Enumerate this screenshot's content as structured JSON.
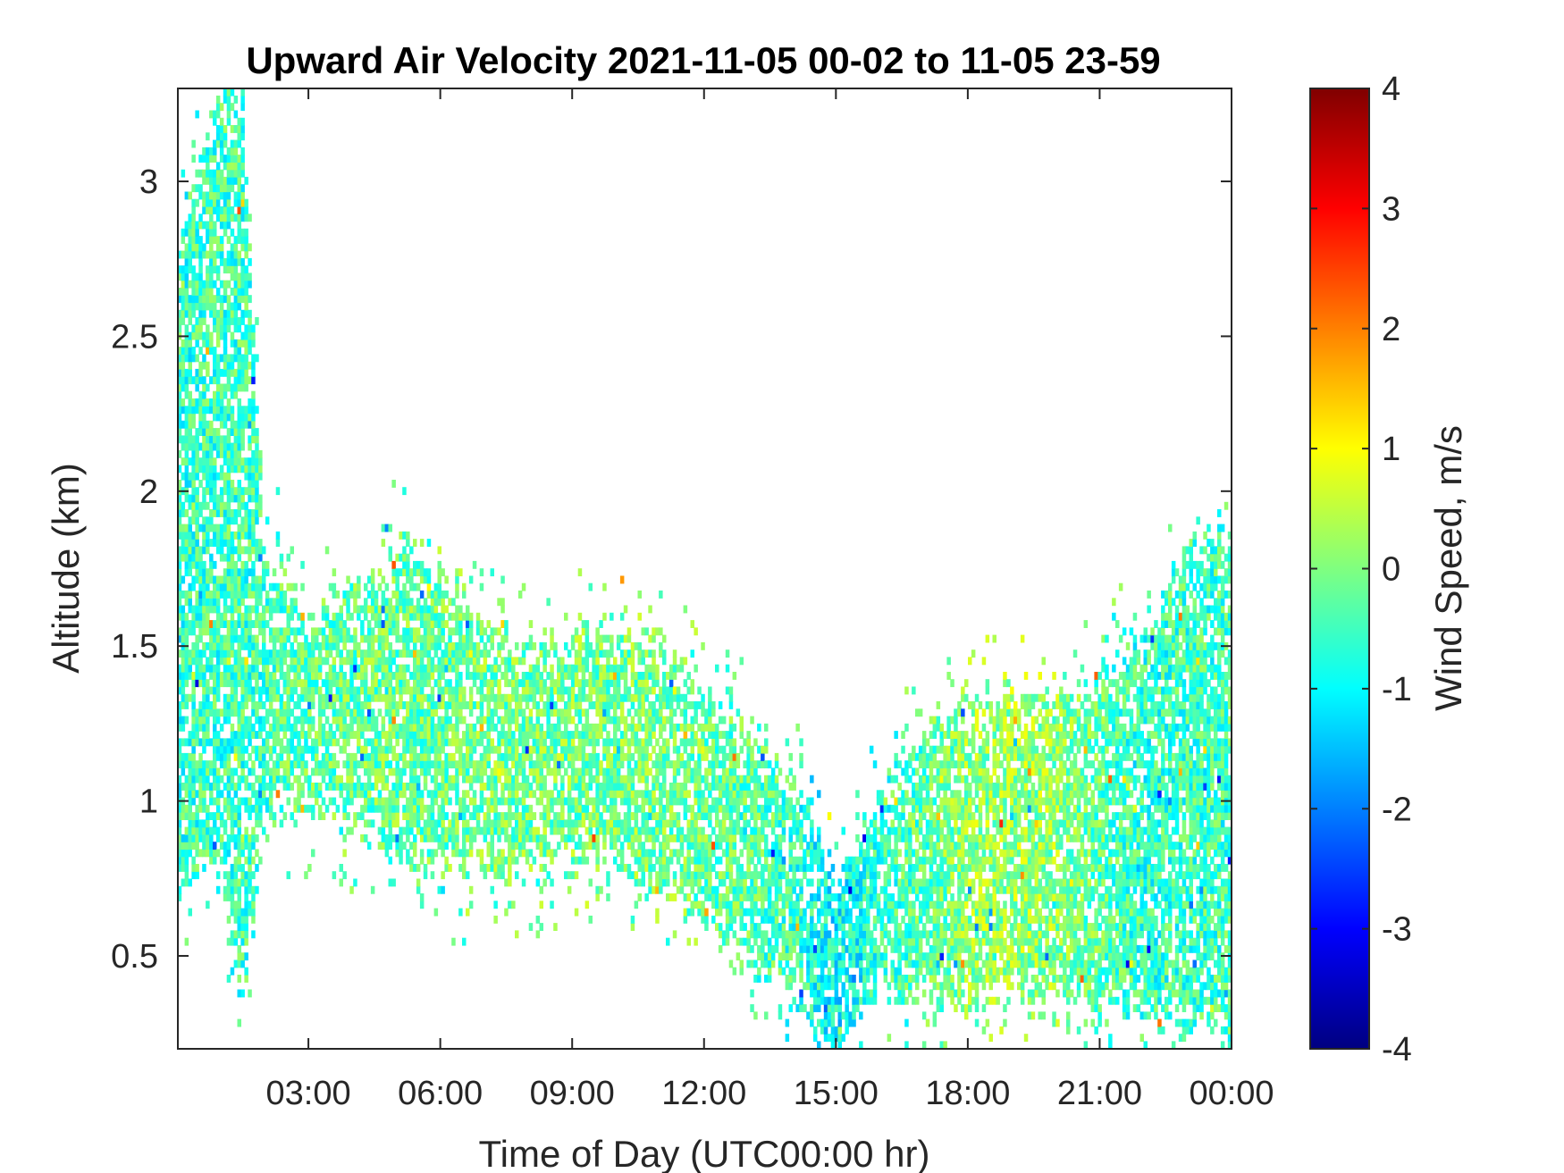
{
  "chart_data": {
    "type": "heatmap",
    "title": "Upward Air Velocity 2021-11-05 00-02 to 11-05 23-59",
    "xlabel": "Time of Day (UTC00:00 hr)",
    "ylabel": "Altitude (km)",
    "x_ticks": [
      "03:00",
      "06:00",
      "09:00",
      "12:00",
      "15:00",
      "18:00",
      "21:00",
      "00:00"
    ],
    "x_tick_hours": [
      3,
      6,
      9,
      12,
      15,
      18,
      21,
      24
    ],
    "xlim_hours": [
      0.03,
      24.0
    ],
    "y_ticks": [
      "0.5",
      "1",
      "1.5",
      "2",
      "2.5",
      "3"
    ],
    "y_tick_values": [
      0.5,
      1,
      1.5,
      2,
      2.5,
      3
    ],
    "ylim": [
      0.2,
      3.3
    ],
    "colorbar": {
      "label": "Wind Speed, m/s",
      "ticks": [
        "-4",
        "-3",
        "-2",
        "-1",
        "0",
        "1",
        "2",
        "3",
        "4"
      ],
      "tick_values": [
        -4,
        -3,
        -2,
        -1,
        0,
        1,
        2,
        3,
        4
      ],
      "clim": [
        -4,
        4
      ],
      "colormap": "jet"
    },
    "data_envelope": {
      "description_hours": [
        0,
        1,
        1.5,
        2,
        2.5,
        3,
        4,
        5,
        6,
        7,
        8,
        9,
        10,
        11,
        12,
        13,
        14,
        14.5,
        15,
        15.5,
        16,
        17,
        18,
        19,
        20,
        21,
        22,
        23,
        24
      ],
      "bottom_km": [
        0.7,
        0.75,
        0.35,
        0.9,
        0.95,
        0.95,
        0.9,
        0.8,
        0.75,
        0.75,
        0.75,
        0.8,
        0.75,
        0.7,
        0.6,
        0.45,
        0.35,
        0.25,
        0.2,
        0.3,
        0.35,
        0.35,
        0.3,
        0.35,
        0.35,
        0.3,
        0.3,
        0.25,
        0.2
      ],
      "top_km": [
        2.8,
        3.3,
        3.3,
        1.8,
        1.75,
        1.6,
        1.7,
        1.8,
        1.75,
        1.6,
        1.5,
        1.55,
        1.55,
        1.55,
        1.35,
        1.25,
        1.1,
        0.95,
        0.75,
        0.9,
        1.05,
        1.25,
        1.35,
        1.35,
        1.35,
        1.45,
        1.55,
        1.85,
        1.9
      ],
      "mean_velocity_ms": [
        -0.6,
        -0.5,
        -0.5,
        -0.5,
        -0.3,
        -0.3,
        -0.2,
        -0.2,
        -0.2,
        -0.1,
        -0.1,
        -0.1,
        -0.1,
        -0.1,
        -0.2,
        -0.3,
        -0.5,
        -0.8,
        -1.0,
        -0.9,
        -0.6,
        -0.3,
        0.1,
        0.2,
        0.1,
        -0.3,
        -0.6,
        -0.5,
        -0.5
      ]
    },
    "grid": false,
    "legend": "colorbar-right"
  }
}
